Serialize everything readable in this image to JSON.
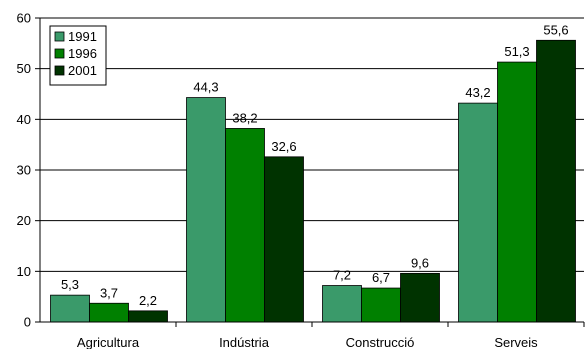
{
  "chart_data": {
    "type": "bar",
    "categories": [
      "Agricultura",
      "Indústria",
      "Construcció",
      "Serveis"
    ],
    "series": [
      {
        "name": "1991",
        "color": "#3a9a6a",
        "values": [
          5.3,
          44.3,
          7.2,
          43.2
        ],
        "labels": [
          "5,3",
          "44,3",
          "7,2",
          "43,2"
        ]
      },
      {
        "name": "1996",
        "color": "#008000",
        "values": [
          3.7,
          38.2,
          6.7,
          51.3
        ],
        "labels": [
          "3,7",
          "38,2",
          "6,7",
          "51,3"
        ]
      },
      {
        "name": "2001",
        "color": "#003300",
        "values": [
          2.2,
          32.6,
          9.6,
          55.6
        ],
        "labels": [
          "2,2",
          "32,6",
          "9,6",
          "55,6"
        ]
      }
    ],
    "ylim": [
      0,
      60
    ],
    "yticks": [
      0,
      10,
      20,
      30,
      40,
      50,
      60
    ],
    "grid": true,
    "legend_position": "top-left"
  }
}
